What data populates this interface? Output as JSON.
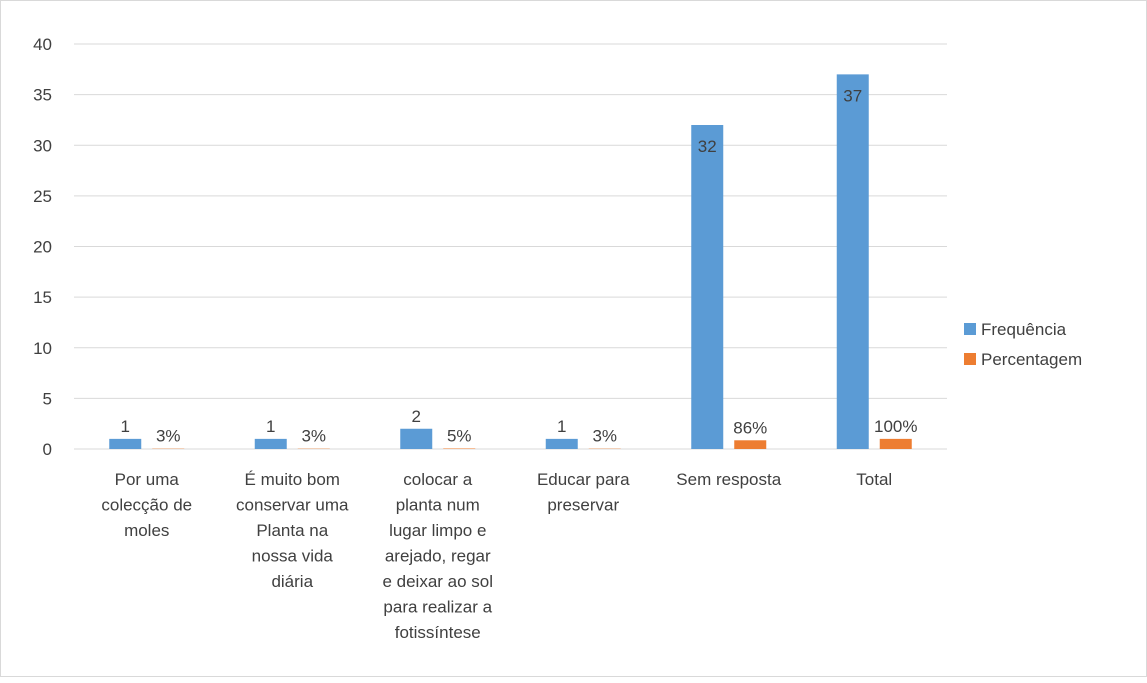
{
  "chart_data": {
    "type": "bar",
    "title": "",
    "xlabel": "",
    "ylabel": "",
    "ylim": [
      0,
      40
    ],
    "yticks": [
      0,
      5,
      10,
      15,
      20,
      25,
      30,
      35,
      40
    ],
    "grid": true,
    "legend_position": "right",
    "categories": [
      "Por uma colecção de moles",
      "É muito bom conservar uma Planta na nossa vida diária",
      "colocar a planta num lugar limpo e arejado, regar e deixar ao sol para realizar a fotissíntese",
      "Educar para preservar",
      "Sem resposta",
      "Total"
    ],
    "category_lines": [
      [
        "Por uma",
        "colecção de",
        "moles"
      ],
      [
        "É muito bom",
        "conservar uma",
        "Planta na",
        "nossa vida",
        "diária"
      ],
      [
        "colocar a",
        "planta num",
        "lugar limpo e",
        "arejado, regar",
        "e deixar ao sol",
        "para realizar a",
        "fotissíntese"
      ],
      [
        "Educar para",
        "preservar"
      ],
      [
        "Sem resposta"
      ],
      [
        "Total"
      ]
    ],
    "series": [
      {
        "name": "Frequência",
        "color": "#5b9bd5",
        "values": [
          1,
          1,
          2,
          1,
          32,
          37
        ],
        "labels": [
          "1",
          "1",
          "2",
          "1",
          "32",
          "37"
        ]
      },
      {
        "name": "Percentagem",
        "color": "#ed7d31",
        "values": [
          0.03,
          0.03,
          0.05,
          0.03,
          0.86,
          1.0
        ],
        "labels": [
          "3%",
          "3%",
          "5%",
          "3%",
          "86%",
          "100%"
        ]
      }
    ]
  }
}
